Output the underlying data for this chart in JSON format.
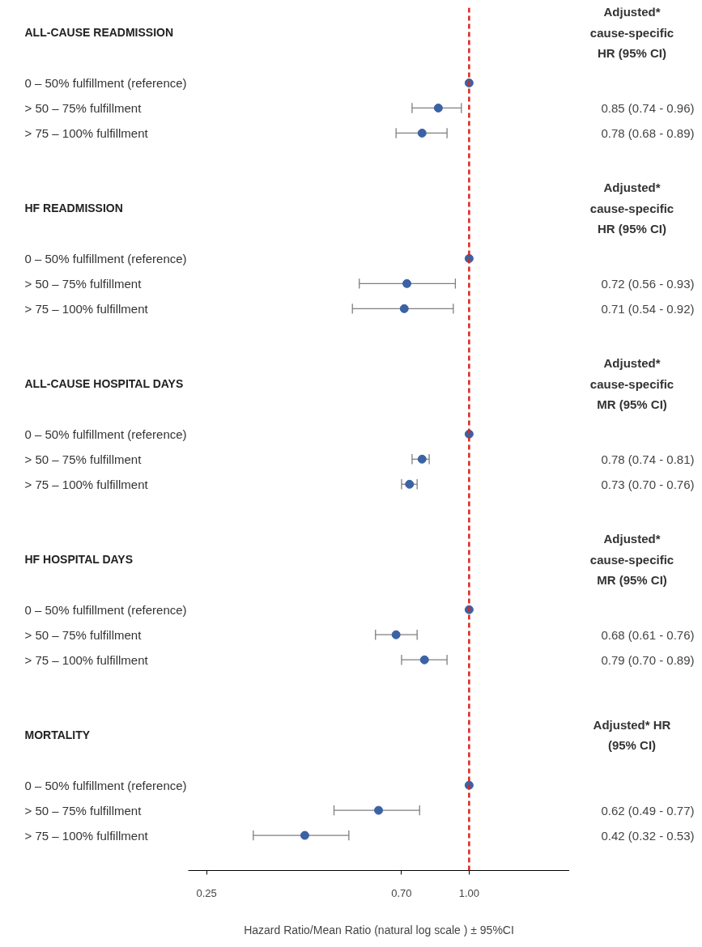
{
  "chart_data": {
    "type": "scatter",
    "orientation": "horizontal",
    "xlabel": "Hazard Ratio/Mean Ratio (natural log scale ) ± 95%CI",
    "categories": [
      "ALL-CAUSE READMISSION",
      null,
      "0 – 50% fulfillment (reference)",
      "> 50 – 75% fulfillment",
      "> 75 – 100% fulfillment",
      null,
      null,
      "HF READMISSION",
      null,
      "0 – 50% fulfillment (reference)",
      "> 50 – 75% fulfillment",
      "> 75 – 100% fulfillment",
      null,
      null,
      "ALL-CAUSE HOSPITAL DAYS",
      null,
      "0 – 50% fulfillment (reference)",
      "> 50 – 75% fulfillment",
      "> 75 – 100% fulfillment",
      null,
      null,
      "HF HOSPITAL DAYS",
      null,
      "0 – 50% fulfillment (reference)",
      "> 50 – 75% fulfillment",
      "> 75 – 100% fulfillment",
      null,
      null,
      "MORTALITY",
      null,
      "0 – 50% fulfillment (reference)",
      "> 50 – 75% fulfillment",
      "> 75 – 100% fulfillment"
    ],
    "values": [
      null,
      null,
      1.0,
      0.85,
      0.78,
      null,
      null,
      null,
      null,
      1.0,
      0.72,
      0.71,
      null,
      null,
      null,
      null,
      1.0,
      0.78,
      0.73,
      null,
      null,
      null,
      null,
      1.0,
      0.68,
      0.79,
      null,
      null,
      null,
      null,
      1.0,
      0.62,
      0.42
    ],
    "errors": [
      null,
      null,
      null,
      [
        0.74,
        0.96
      ],
      [
        0.68,
        0.89
      ],
      null,
      null,
      null,
      null,
      null,
      [
        0.56,
        0.93
      ],
      [
        0.54,
        0.92
      ],
      null,
      null,
      null,
      null,
      null,
      [
        0.74,
        0.81
      ],
      [
        0.7,
        0.76
      ],
      null,
      null,
      null,
      null,
      null,
      [
        0.61,
        0.76
      ],
      [
        0.7,
        0.89
      ],
      null,
      null,
      null,
      null,
      null,
      [
        0.49,
        0.77
      ],
      [
        0.32,
        0.53
      ]
    ],
    "value_labels": [
      null,
      null,
      null,
      "0.85 (0.74 - 0.96)",
      "0.78 (0.68 - 0.89)",
      null,
      null,
      null,
      null,
      null,
      "0.72 (0.56 - 0.93)",
      "0.71 (0.54 - 0.92)",
      null,
      null,
      null,
      null,
      null,
      "0.78 (0.74 - 0.81)",
      "0.73 (0.70 - 0.76)",
      null,
      null,
      null,
      null,
      null,
      "0.68 (0.61 - 0.76)",
      "0.79 (0.70 - 0.89)",
      null,
      null,
      null,
      null,
      null,
      "0.62 (0.49 - 0.77)",
      "0.42 (0.32 - 0.53)"
    ],
    "annotations": [
      "Adjusted*\ncause-specific\nHR (95% CI)",
      "Adjusted*\ncause-specific\nHR (95% CI)",
      "Adjusted*\ncause-specific\nMR (95% CI)",
      "Adjusted*\ncause-specific\nMR (95% CI)",
      "Adjusted* HR\n(95% CI)"
    ],
    "color": "#3a62a4",
    "xlim": [
      0.227,
      1.7
    ],
    "xticks": [
      0.25,
      {
        "value": 0.7,
        "label": "0.70"
      },
      {
        "value": 1.0,
        "label": "1.00"
      }
    ],
    "ref_lines": [
      {
        "axis": "x",
        "value": 1.0,
        "color": "#e0241b",
        "line_style": "dashed"
      }
    ],
    "log": "x",
    "grid": false,
    "marker": "circle",
    "tick_labels": "x"
  }
}
